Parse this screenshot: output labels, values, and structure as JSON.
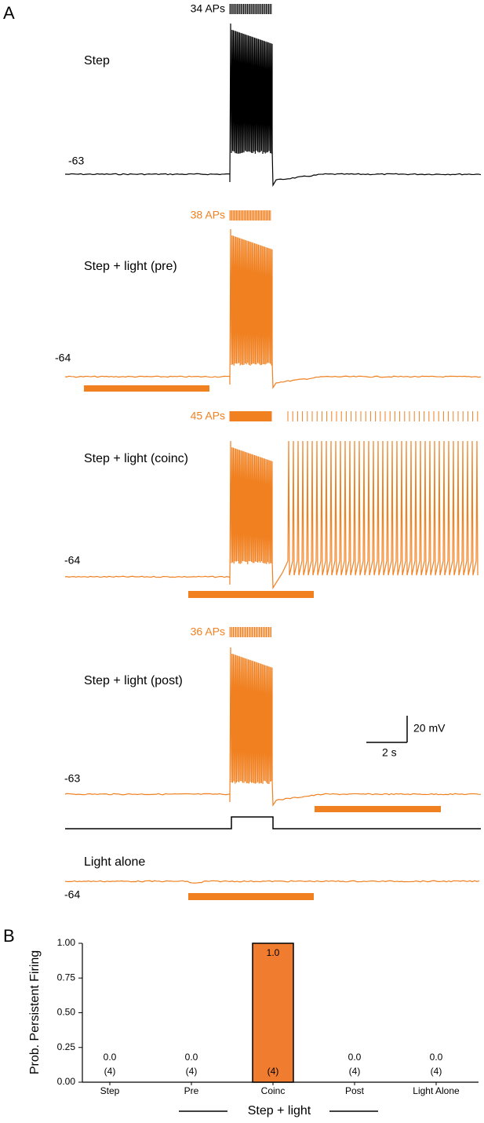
{
  "panel_a": {
    "label": "A",
    "traces": [
      {
        "title": "Step",
        "ap_count": "34 APs",
        "rest": "-63"
      },
      {
        "title": "Step + light (pre)",
        "ap_count": "38 APs",
        "rest": "-64"
      },
      {
        "title": "Step + light (coinc)",
        "ap_count": "45 APs",
        "rest": "-64"
      },
      {
        "title": "Step + light (post)",
        "ap_count": "36 APs",
        "rest": "-63"
      },
      {
        "title": "Light alone",
        "rest": "-64"
      }
    ],
    "scale_bar": {
      "y": "20 mV",
      "x": "2 s"
    }
  },
  "chart_data": {
    "type": "bar",
    "panel_label": "B",
    "y_label": "Prob. Persistent Firing",
    "group_label": "Step + light",
    "categories": [
      "Step",
      "Pre",
      "Coinc",
      "Post",
      "Light Alone"
    ],
    "values": [
      0,
      0,
      1,
      0,
      0
    ],
    "value_labels": [
      "0.0",
      "0.0",
      "1.0",
      "0.0",
      "0.0"
    ],
    "n_labels": [
      "(4)",
      "(4)",
      "(4)",
      "(4)",
      "(4)"
    ],
    "color": "#f07c30",
    "ylim": [
      0,
      1
    ],
    "yticks": [
      {
        "value": 0,
        "label": "0.00"
      },
      {
        "value": 0.25,
        "label": "0.25"
      },
      {
        "value": 0.5,
        "label": "0.50"
      },
      {
        "value": 0.75,
        "label": "0.75"
      },
      {
        "value": 1,
        "label": "1.00"
      }
    ]
  }
}
